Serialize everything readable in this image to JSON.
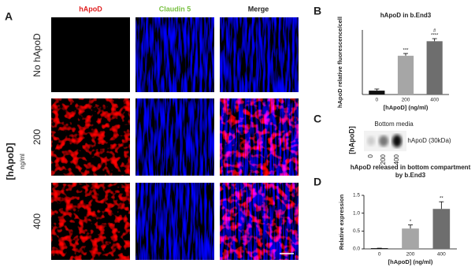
{
  "panels": {
    "a": {
      "label": "A",
      "columns": [
        "hApoD",
        "Claudin 5",
        "Merge"
      ],
      "rows": [
        "No hApoD",
        "200",
        "400"
      ],
      "group_label": "[hApoD]",
      "group_unit": "ng/ml"
    },
    "b": {
      "label": "B"
    },
    "c": {
      "label": "C",
      "title": "Bottom media",
      "lanes": [
        "0",
        "200",
        "400"
      ],
      "side_label": "[hApoD]",
      "band_label": "hApoD (30kDa)"
    },
    "d": {
      "label": "D"
    }
  },
  "chart_data": [
    {
      "type": "bar",
      "title": "hApoD in b.End3",
      "y_label": "hApoD relative fluorescence/cell",
      "x_label": "[hApoD] (ng/ml)",
      "categories": [
        "0",
        "200",
        "400"
      ],
      "values": [
        0.12,
        1.2,
        1.65
      ],
      "errors": [
        0.05,
        0.07,
        0.08
      ],
      "colors": [
        "#111111",
        "#a6a6a6",
        "#6e6e6e"
      ],
      "significance": [
        null,
        "***",
        "****"
      ],
      "significance2": [
        null,
        null,
        "#"
      ],
      "ylim": [
        0,
        2
      ]
    },
    {
      "type": "bar",
      "title": [
        "hApoD released in bottom compartment",
        "by b.End3"
      ],
      "y_label": "Relative expression",
      "x_label": "[hApoD] (ng/ml)",
      "categories": [
        "0",
        "200",
        "400"
      ],
      "values": [
        0.02,
        0.57,
        1.12
      ],
      "errors": [
        0.0,
        0.1,
        0.2
      ],
      "colors": [
        "#111111",
        "#a6a6a6",
        "#6e6e6e"
      ],
      "significance": [
        null,
        "*",
        "**"
      ],
      "ylim": [
        0,
        1.5
      ],
      "yticks": [
        {
          "value": 0,
          "label": "0.0"
        },
        {
          "value": 0.5,
          "label": "0.5"
        },
        {
          "value": 1,
          "label": "1.0"
        },
        {
          "value": 1.5,
          "label": "1.5"
        }
      ]
    }
  ]
}
